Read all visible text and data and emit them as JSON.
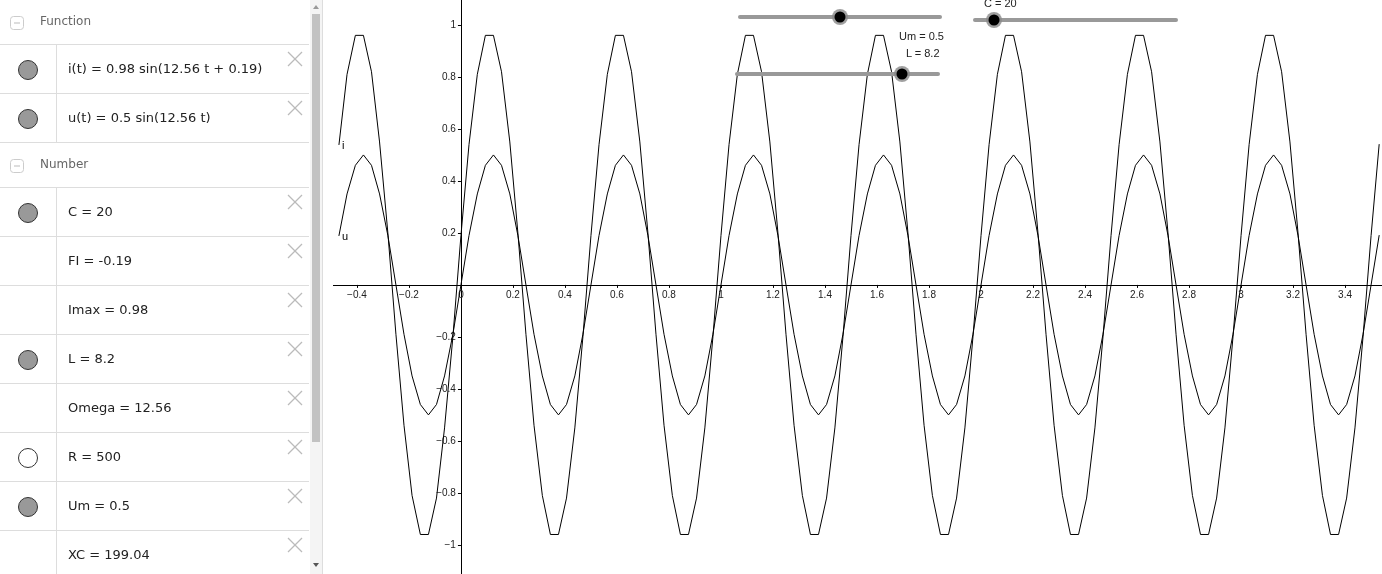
{
  "chart_data": {
    "type": "line",
    "x": [
      -0.469,
      -0.438,
      -0.406,
      -0.375,
      -0.344,
      -0.313,
      -0.281,
      -0.25,
      -0.219,
      -0.188,
      -0.156,
      -0.125,
      -0.094,
      -0.063,
      -0.031,
      0,
      0.031,
      0.063,
      0.094,
      0.125,
      0.156,
      0.188,
      0.219,
      0.25,
      0.281,
      0.313,
      0.344,
      0.375,
      0.406,
      0.438,
      0.469,
      0.5,
      0.531,
      0.563,
      0.594,
      0.625,
      0.656,
      0.688,
      0.719,
      0.75,
      0.781,
      0.813,
      0.844,
      0.875,
      0.906,
      0.938,
      0.969,
      1,
      1.031,
      1.063,
      1.094,
      1.125,
      1.156,
      1.188,
      1.219,
      1.25,
      1.281,
      1.313,
      1.344,
      1.375,
      1.406,
      1.438,
      1.469,
      1.5,
      1.531,
      1.563,
      1.594,
      1.625,
      1.656,
      1.688,
      1.719,
      1.75,
      1.781,
      1.813,
      1.844,
      1.875,
      1.906,
      1.938,
      1.969,
      2,
      2.031,
      2.063,
      2.094,
      2.125,
      2.156,
      2.188,
      2.219,
      2.25,
      2.281,
      2.313,
      2.344,
      2.375,
      2.406,
      2.438,
      2.469,
      2.5,
      2.531,
      2.563,
      2.594,
      2.625,
      2.656,
      2.688,
      2.719,
      2.75,
      2.781,
      2.813,
      2.844,
      2.875,
      2.906,
      2.938,
      2.969,
      3,
      3.031,
      3.063,
      3.094,
      3.125,
      3.156,
      3.188,
      3.219,
      3.25,
      3.281,
      3.313,
      3.344,
      3.375,
      3.406,
      3.438,
      3.469,
      3.5,
      3.531
    ],
    "series": [
      {
        "name": "i",
        "color": "#000000",
        "values": [
          0.54,
          0.81,
          0.96,
          0.96,
          0.82,
          0.55,
          0.2,
          -0.19,
          -0.54,
          -0.81,
          -0.96,
          -0.96,
          -0.82,
          -0.55,
          -0.2,
          0.19,
          0.54,
          0.81,
          0.96,
          0.96,
          0.82,
          0.55,
          0.2,
          -0.19,
          -0.54,
          -0.81,
          -0.96,
          -0.96,
          -0.82,
          -0.55,
          -0.2,
          0.19,
          0.54,
          0.81,
          0.96,
          0.96,
          0.82,
          0.55,
          0.2,
          -0.19,
          -0.54,
          -0.81,
          -0.96,
          -0.96,
          -0.82,
          -0.55,
          -0.2,
          0.19,
          0.54,
          0.81,
          0.96,
          0.96,
          0.82,
          0.55,
          0.2,
          -0.19,
          -0.54,
          -0.81,
          -0.96,
          -0.96,
          -0.82,
          -0.55,
          -0.2,
          0.19,
          0.54,
          0.81,
          0.96,
          0.96,
          0.82,
          0.55,
          0.2,
          -0.19,
          -0.54,
          -0.81,
          -0.96,
          -0.96,
          -0.82,
          -0.55,
          -0.2,
          0.19,
          0.54,
          0.81,
          0.96,
          0.96,
          0.82,
          0.55,
          0.2,
          -0.19,
          -0.54,
          -0.81,
          -0.96,
          -0.96,
          -0.82,
          -0.55,
          -0.2,
          0.19,
          0.54,
          0.81,
          0.96,
          0.96,
          0.82,
          0.55,
          0.2,
          -0.19,
          -0.54,
          -0.81,
          -0.96,
          -0.96,
          -0.82,
          -0.55,
          -0.2,
          0.19,
          0.54,
          0.81,
          0.96,
          0.96,
          0.82,
          0.55,
          0.2,
          -0.19,
          -0.54,
          -0.81,
          -0.96,
          -0.96,
          -0.82,
          -0.55,
          -0.2,
          0.19,
          0.54
        ]
      },
      {
        "name": "u",
        "color": "#000000",
        "values": [
          0.19,
          0.35,
          0.46,
          0.5,
          0.46,
          0.35,
          0.19,
          0,
          -0.19,
          -0.35,
          -0.46,
          -0.5,
          -0.46,
          -0.35,
          -0.19,
          0,
          0.19,
          0.35,
          0.46,
          0.5,
          0.46,
          0.35,
          0.19,
          0,
          -0.19,
          -0.35,
          -0.46,
          -0.5,
          -0.46,
          -0.35,
          -0.19,
          0,
          0.19,
          0.35,
          0.46,
          0.5,
          0.46,
          0.35,
          0.19,
          0,
          -0.19,
          -0.35,
          -0.46,
          -0.5,
          -0.46,
          -0.35,
          -0.19,
          0,
          0.19,
          0.35,
          0.46,
          0.5,
          0.46,
          0.35,
          0.19,
          0,
          -0.19,
          -0.35,
          -0.46,
          -0.5,
          -0.46,
          -0.35,
          -0.19,
          0,
          0.19,
          0.35,
          0.46,
          0.5,
          0.46,
          0.35,
          0.19,
          0,
          -0.19,
          -0.35,
          -0.46,
          -0.5,
          -0.46,
          -0.35,
          -0.19,
          0,
          0.19,
          0.35,
          0.46,
          0.5,
          0.46,
          0.35,
          0.19,
          0,
          -0.19,
          -0.35,
          -0.46,
          -0.5,
          -0.46,
          -0.35,
          -0.19,
          0,
          0.19,
          0.35,
          0.46,
          0.5,
          0.46,
          0.35,
          0.19,
          0,
          -0.19,
          -0.35,
          -0.46,
          -0.5,
          -0.46,
          -0.35,
          -0.19,
          0,
          0.19,
          0.35,
          0.46,
          0.5,
          0.46,
          0.35,
          0.19,
          0,
          -0.19,
          -0.35,
          -0.46,
          -0.5,
          -0.46,
          -0.35,
          -0.19,
          0,
          0.19
        ]
      }
    ],
    "xlim": [
      -0.492,
      3.542
    ],
    "ylim": [
      -1.112,
      1.096
    ],
    "xticks": [
      {
        "value": -0.4,
        "label": "−0.4"
      },
      {
        "value": -0.2,
        "label": "−0.2"
      },
      0,
      0.2,
      0.4,
      0.6,
      0.8,
      1,
      1.2,
      1.4,
      1.6,
      1.8,
      2,
      2.2,
      2.4,
      2.6,
      2.8,
      3,
      3.2,
      3.4
    ],
    "yticks": [
      {
        "value": -1,
        "label": "−1"
      },
      {
        "value": -0.8,
        "label": "−0.8"
      },
      {
        "value": -0.6,
        "label": "−0.6"
      },
      {
        "value": -0.4,
        "label": "−0.4"
      },
      {
        "value": -0.2,
        "label": "−0.2"
      },
      0.2,
      0.4,
      0.6,
      0.8,
      1
    ],
    "grid": false,
    "legend": false,
    "marker": "none",
    "line_style": "solid",
    "annotations": [
      "Function",
      "i(t) = 0.98 sin(12.56 t + 0.19)",
      "u(t) = 0.5 sin(12.56 t)",
      "Number",
      "C = 20",
      "FI = -0.19",
      "Imax = 0.98",
      "L = 8.2",
      "Omega = 12.56",
      "R = 500",
      "Um = 0.5",
      "XC = 199.04",
      "Um = 0.5",
      "L = 8.2",
      "C = 20"
    ]
  }
}
